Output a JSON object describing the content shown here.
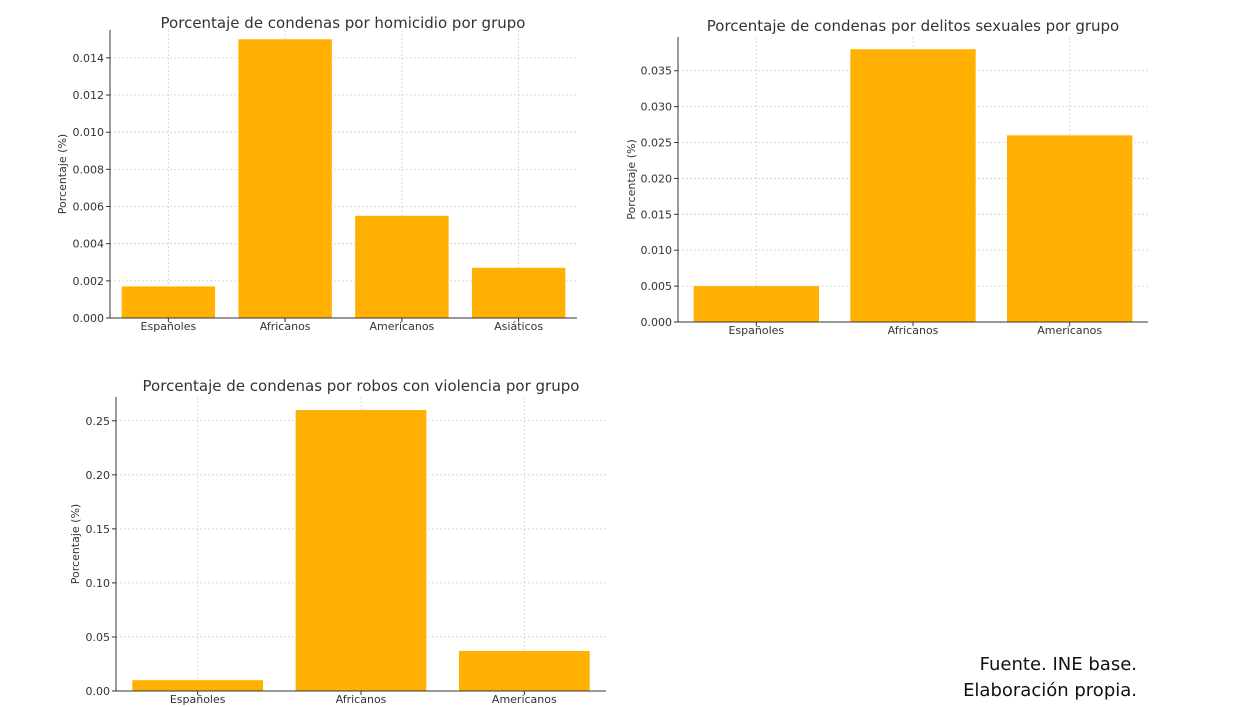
{
  "chart_data": [
    {
      "type": "bar",
      "title": "Porcentaje de condenas por homicidio por grupo",
      "ylabel": "Porcentaje (%)",
      "xlabel": "",
      "categories": [
        "Españoles",
        "Africanos",
        "Americanos",
        "Asiáticos"
      ],
      "values": [
        0.0017,
        0.015,
        0.0055,
        0.0027
      ],
      "ylim": [
        0,
        0.0155
      ],
      "yticks": [
        0.0,
        0.002,
        0.004,
        0.006,
        0.008,
        0.01,
        0.012,
        0.014
      ],
      "ytick_labels": [
        "0.000",
        "0.002",
        "0.004",
        "0.006",
        "0.008",
        "0.010",
        "0.012",
        "0.014"
      ],
      "grid": true,
      "color": "#FFB000"
    },
    {
      "type": "bar",
      "title": "Porcentaje de condenas por delitos sexuales por grupo",
      "ylabel": "Porcentaje (%)",
      "xlabel": "",
      "categories": [
        "Españoles",
        "Africanos",
        "Americanos"
      ],
      "values": [
        0.005,
        0.038,
        0.026
      ],
      "ylim": [
        0,
        0.0397
      ],
      "yticks": [
        0.0,
        0.005,
        0.01,
        0.015,
        0.02,
        0.025,
        0.03,
        0.035
      ],
      "ytick_labels": [
        "0.000",
        "0.005",
        "0.010",
        "0.015",
        "0.020",
        "0.025",
        "0.030",
        "0.035"
      ],
      "grid": true,
      "color": "#FFB000"
    },
    {
      "type": "bar",
      "title": "Porcentaje de condenas por robos con violencia por grupo",
      "ylabel": "Porcentaje (%)",
      "xlabel": "",
      "categories": [
        "Españoles",
        "Africanos",
        "Americanos"
      ],
      "values": [
        0.01,
        0.26,
        0.037
      ],
      "ylim": [
        0,
        0.272
      ],
      "yticks": [
        0.0,
        0.05,
        0.1,
        0.15,
        0.2,
        0.25
      ],
      "ytick_labels": [
        "0.00",
        "0.05",
        "0.10",
        "0.15",
        "0.20",
        "0.25"
      ],
      "grid": true,
      "color": "#FFB000"
    }
  ],
  "source_note": {
    "line1": "Fuente. INE base.",
    "line2": "Elaboración propia."
  }
}
